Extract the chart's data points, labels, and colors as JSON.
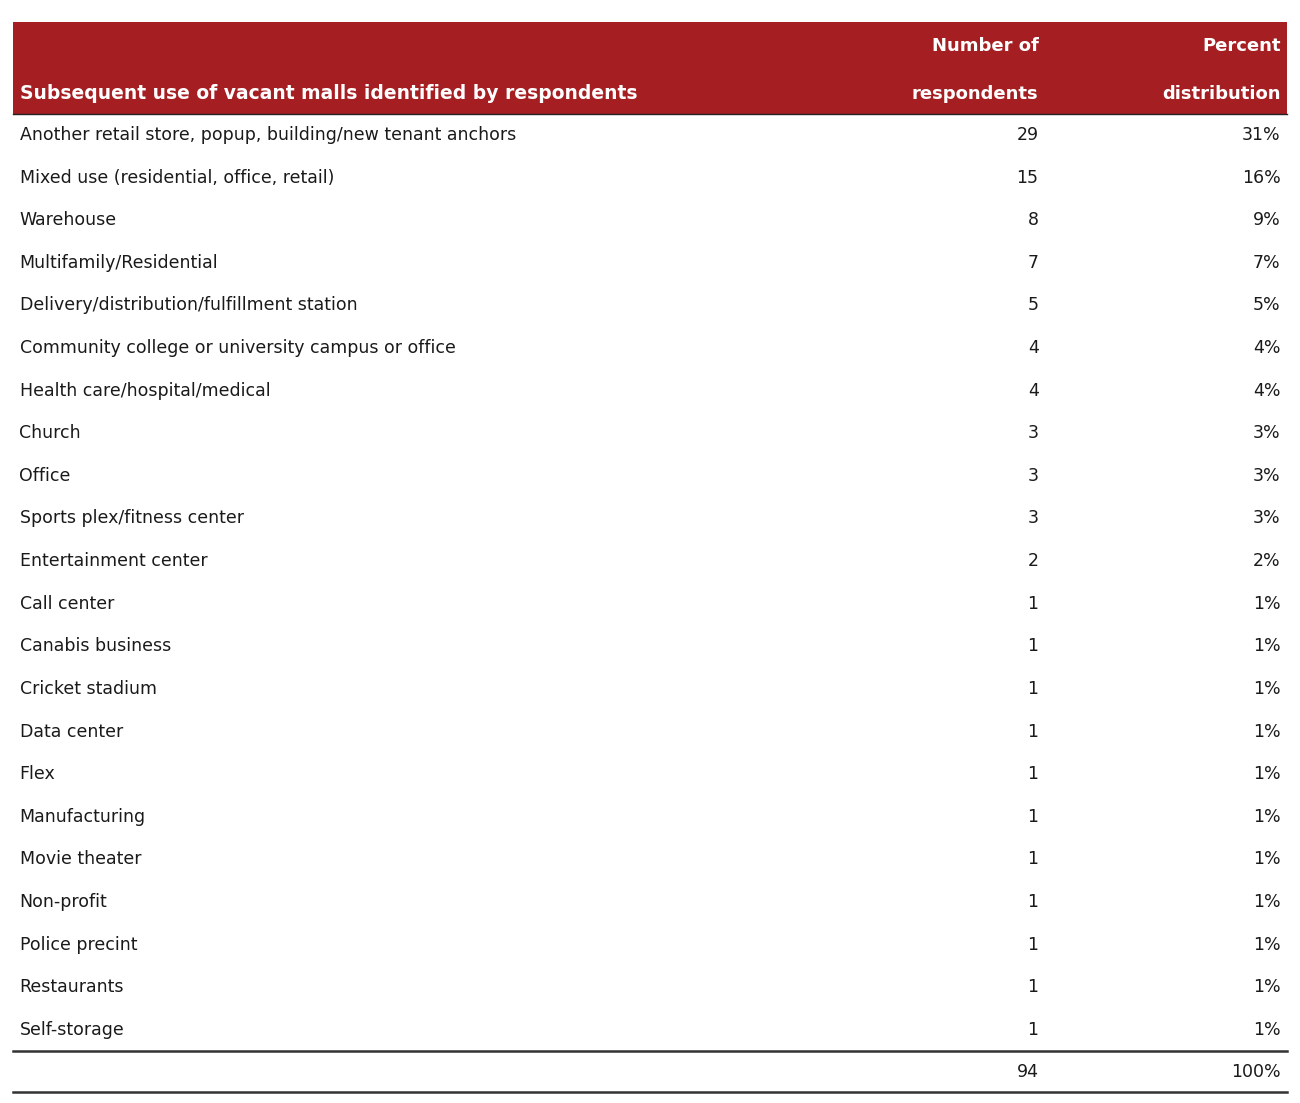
{
  "header_bg_color": "#A41E22",
  "header_text_color": "#FFFFFF",
  "text_color": "#1A1A1A",
  "col1_header_line1": "Subsequent use of vacant malls identified by respondents",
  "col2_header_line1": "Number of",
  "col2_header_line2": "respondents",
  "col3_header_line1": "Percent",
  "col3_header_line2": "distribution",
  "rows": [
    [
      "Another retail store, popup, building/new tenant anchors",
      "29",
      "31%"
    ],
    [
      "Mixed use (residential, office, retail)",
      "15",
      "16%"
    ],
    [
      "Warehouse",
      "8",
      "9%"
    ],
    [
      "Multifamily/Residential",
      "7",
      "7%"
    ],
    [
      "Delivery/distribution/fulfillment station",
      "5",
      "5%"
    ],
    [
      "Community college or university campus or office",
      "4",
      "4%"
    ],
    [
      "Health care/hospital/medical",
      "4",
      "4%"
    ],
    [
      "Church",
      "3",
      "3%"
    ],
    [
      "Office",
      "3",
      "3%"
    ],
    [
      "Sports plex/fitness center",
      "3",
      "3%"
    ],
    [
      "Entertainment center",
      "2",
      "2%"
    ],
    [
      "Call center",
      "1",
      "1%"
    ],
    [
      "Canabis business",
      "1",
      "1%"
    ],
    [
      "Cricket stadium",
      "1",
      "1%"
    ],
    [
      "Data center",
      "1",
      "1%"
    ],
    [
      "Flex",
      "1",
      "1%"
    ],
    [
      "Manufacturing",
      "1",
      "1%"
    ],
    [
      "Movie theater",
      "1",
      "1%"
    ],
    [
      "Non-profit",
      "1",
      "1%"
    ],
    [
      "Police precint",
      "1",
      "1%"
    ],
    [
      "Restaurants",
      "1",
      "1%"
    ],
    [
      "Self-storage",
      "1",
      "1%"
    ]
  ],
  "total_row": [
    "",
    "94",
    "100%"
  ],
  "figsize": [
    13.0,
    11.03
  ],
  "dpi": 100
}
